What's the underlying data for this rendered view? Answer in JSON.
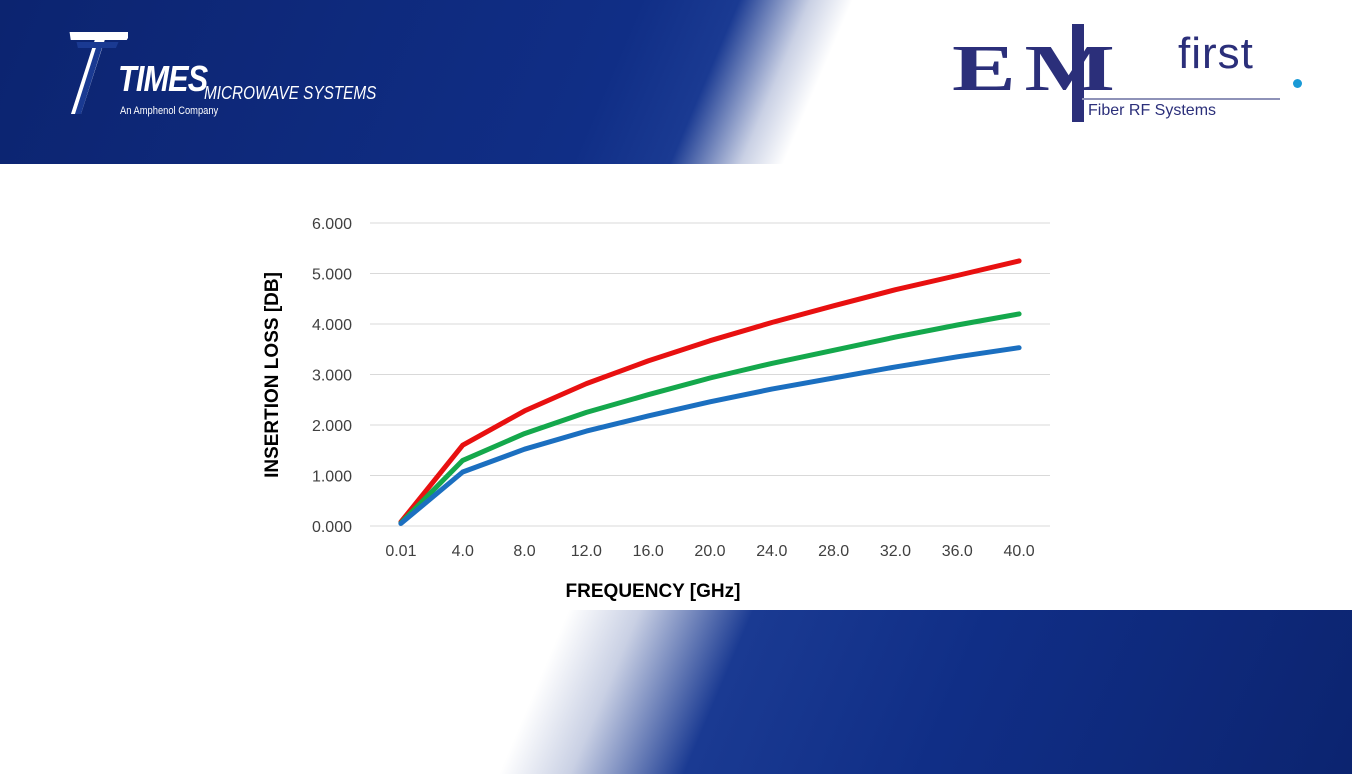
{
  "brand": {
    "times_name": "TIMES",
    "times_sub": "MICROWAVE SYSTEMS",
    "times_tagline": "An Amphenol Company",
    "em_letters": "EM",
    "em_first": "first",
    "em_tagline": "Fiber RF Systems"
  },
  "chart_data": {
    "type": "line",
    "title": "",
    "xlabel": "FREQUENCY [GHz]",
    "ylabel": "INSERTION LOSS [DB]",
    "categories": [
      "0.01",
      "4.0",
      "8.0",
      "12.0",
      "16.0",
      "20.0",
      "24.0",
      "28.0",
      "32.0",
      "36.0",
      "40.0"
    ],
    "yticks": [
      "0.000",
      "1.000",
      "2.000",
      "3.000",
      "4.000",
      "5.000",
      "6.000"
    ],
    "ylim": [
      0,
      6
    ],
    "grid": true,
    "legend": "none",
    "series": [
      {
        "color": "#e81010",
        "values": [
          0.08,
          1.6,
          2.28,
          2.82,
          3.27,
          3.67,
          4.03,
          4.36,
          4.68,
          4.96,
          5.25
        ]
      },
      {
        "color": "#14a84c",
        "values": [
          0.06,
          1.3,
          1.83,
          2.25,
          2.6,
          2.93,
          3.22,
          3.48,
          3.74,
          3.98,
          4.2
        ]
      },
      {
        "color": "#1b6fc0",
        "values": [
          0.05,
          1.07,
          1.52,
          1.88,
          2.18,
          2.46,
          2.71,
          2.93,
          3.15,
          3.35,
          3.53
        ]
      }
    ]
  }
}
